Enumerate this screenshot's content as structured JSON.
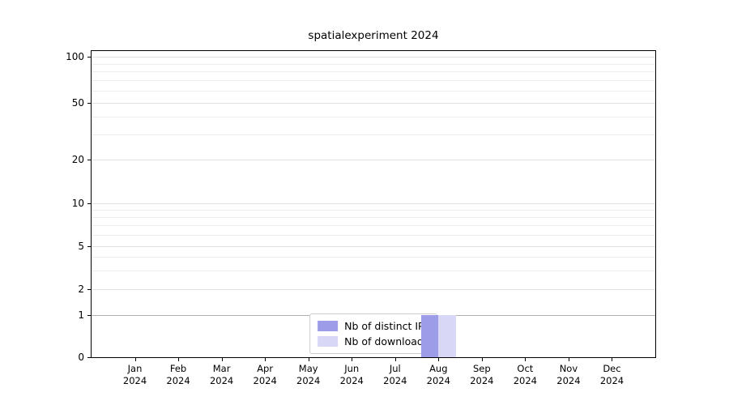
{
  "chart_data": {
    "type": "bar",
    "title": "spatialexperiment 2024",
    "year": "2024",
    "months": [
      "Jan",
      "Feb",
      "Mar",
      "Apr",
      "May",
      "Jun",
      "Jul",
      "Aug",
      "Sep",
      "Oct",
      "Nov",
      "Dec"
    ],
    "series": [
      {
        "name": "Nb of distinct IPs",
        "color": "#9c9ce8",
        "values": [
          0,
          0,
          0,
          0,
          0,
          0,
          0,
          1,
          0,
          0,
          0,
          0
        ]
      },
      {
        "name": "Nb of downloads",
        "color": "#d8d8f6",
        "values": [
          0,
          0,
          0,
          0,
          0,
          0,
          0,
          1,
          0,
          0,
          0,
          0
        ]
      }
    ],
    "yaxis": {
      "scale": "log",
      "range": [
        0,
        100
      ],
      "ticks": [
        0,
        1,
        2,
        5,
        10,
        20,
        50,
        100
      ],
      "minor_ticks": [
        3,
        4,
        6,
        7,
        8,
        9,
        30,
        40,
        60,
        70,
        80,
        90
      ]
    },
    "xlabel": "",
    "ylabel": "",
    "legend_position": "lower center",
    "grid": true
  }
}
